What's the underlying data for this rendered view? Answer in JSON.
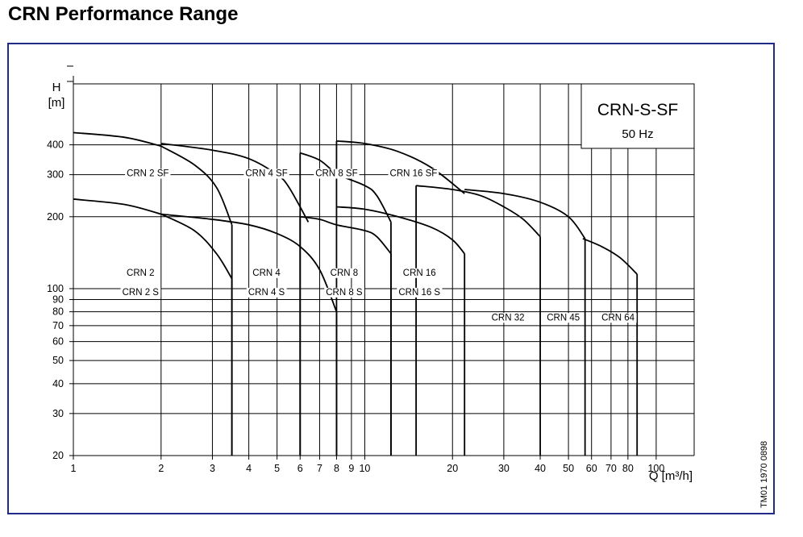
{
  "page_title": "CRN Performance Range",
  "reference_code": "TM01 1970 0898",
  "chart_data": {
    "type": "line",
    "title_box": {
      "line1": "CRN-S-SF",
      "line2": "50 Hz"
    },
    "x_label": "Q [m³/h]",
    "y_label_top": "H",
    "y_label_unit": "[m]",
    "x_scale": "log",
    "y_scale": "log",
    "xlim": [
      1,
      135
    ],
    "ylim": [
      20,
      720
    ],
    "x_ticks": [
      1,
      2,
      3,
      4,
      5,
      6,
      7,
      8,
      9,
      10,
      20,
      30,
      40,
      50,
      60,
      70,
      80,
      100
    ],
    "y_ticks": [
      20,
      30,
      40,
      50,
      60,
      70,
      80,
      90,
      100,
      200,
      300,
      400
    ],
    "grid": true,
    "line_color": "#000000",
    "grid_color": "#000000",
    "frame_color": "#1f2a8a",
    "curves": [
      {
        "x": [
          1.0,
          1.5,
          2.0
        ],
        "y": [
          450,
          430,
          395
        ]
      },
      {
        "x": [
          2.0,
          2.6,
          3.1,
          3.5
        ],
        "y": [
          395,
          330,
          265,
          185
        ]
      },
      {
        "x": [
          2.0,
          3.0,
          4.0,
          5.0,
          5.5,
          6.4
        ],
        "y": [
          405,
          380,
          350,
          300,
          265,
          190
        ]
      },
      {
        "x": [
          6.0,
          7.0,
          8.0
        ],
        "y": [
          370,
          345,
          300
        ]
      },
      {
        "x": [
          8.0,
          10.0,
          11.0,
          12.3
        ],
        "y": [
          300,
          270,
          245,
          190
        ]
      },
      {
        "x": [
          8.0,
          10.0,
          13.0,
          17.0,
          22.0
        ],
        "y": [
          415,
          405,
          375,
          320,
          250
        ]
      },
      {
        "x": [
          15.0,
          20.0,
          25.0,
          30.0,
          35.0,
          40.0
        ],
        "y": [
          270,
          260,
          245,
          220,
          195,
          165
        ]
      },
      {
        "x": [
          22.0,
          30.0,
          40.0,
          50.0,
          57.0
        ],
        "y": [
          260,
          250,
          230,
          200,
          162
        ]
      },
      {
        "x": [
          56.0,
          65.0,
          75.0,
          86.0
        ],
        "y": [
          162,
          150,
          135,
          115
        ]
      },
      {
        "x": [
          1.0,
          1.5,
          2.0
        ],
        "y": [
          237,
          225,
          205
        ]
      },
      {
        "x": [
          2.0,
          2.6,
          3.1,
          3.5
        ],
        "y": [
          205,
          175,
          140,
          110
        ]
      },
      {
        "x": [
          2.0,
          3.0,
          4.0,
          5.0,
          6.0,
          7.0,
          8.0
        ],
        "y": [
          205,
          195,
          185,
          170,
          150,
          120,
          80
        ]
      },
      {
        "x": [
          6.0,
          7.0,
          8.0,
          10.0,
          11.0,
          12.3
        ],
        "y": [
          200,
          195,
          185,
          175,
          165,
          140
        ]
      },
      {
        "x": [
          8.0,
          10.0,
          13.0,
          17.0,
          20.0,
          22.0
        ],
        "y": [
          220,
          215,
          200,
          180,
          160,
          140
        ]
      }
    ],
    "verticals": [
      {
        "x": 3.5,
        "y_top": 185
      },
      {
        "x": 3.5,
        "y_top": 110
      },
      {
        "x": 6.0,
        "y_top": 370
      },
      {
        "x": 6.0,
        "y_top": 200
      },
      {
        "x": 8.0,
        "y_top": 415
      },
      {
        "x": 8.0,
        "y_top": 80
      },
      {
        "x": 12.3,
        "y_top": 190
      },
      {
        "x": 12.3,
        "y_top": 140
      },
      {
        "x": 15.0,
        "y_top": 270
      },
      {
        "x": 22.0,
        "y_top": 140
      },
      {
        "x": 40.0,
        "y_top": 165
      },
      {
        "x": 57.0,
        "y_top": 162
      },
      {
        "x": 86.0,
        "y_top": 115
      }
    ],
    "annotations": [
      {
        "text": "CRN 2 SF",
        "x": 1.8,
        "y": 305
      },
      {
        "text": "CRN 4 SF",
        "x": 4.6,
        "y": 305
      },
      {
        "text": "CRN 8 SF",
        "x": 8.0,
        "y": 305
      },
      {
        "text": "CRN 16 SF",
        "x": 14.7,
        "y": 305
      },
      {
        "text": "CRN 2",
        "x": 1.7,
        "y": 117
      },
      {
        "text": "CRN 2 S",
        "x": 1.7,
        "y": 97
      },
      {
        "text": "CRN 4",
        "x": 4.6,
        "y": 117
      },
      {
        "text": "CRN 4 S",
        "x": 4.6,
        "y": 97
      },
      {
        "text": "CRN 8",
        "x": 8.5,
        "y": 117
      },
      {
        "text": "CRN 8 S",
        "x": 8.5,
        "y": 97
      },
      {
        "text": "CRN 16",
        "x": 15.4,
        "y": 117
      },
      {
        "text": "CRN 16 S",
        "x": 15.4,
        "y": 97
      },
      {
        "text": "CRN 32",
        "x": 31.0,
        "y": 76
      },
      {
        "text": "CRN 45",
        "x": 48.0,
        "y": 76
      },
      {
        "text": "CRN 64",
        "x": 74.0,
        "y": 76
      }
    ]
  }
}
